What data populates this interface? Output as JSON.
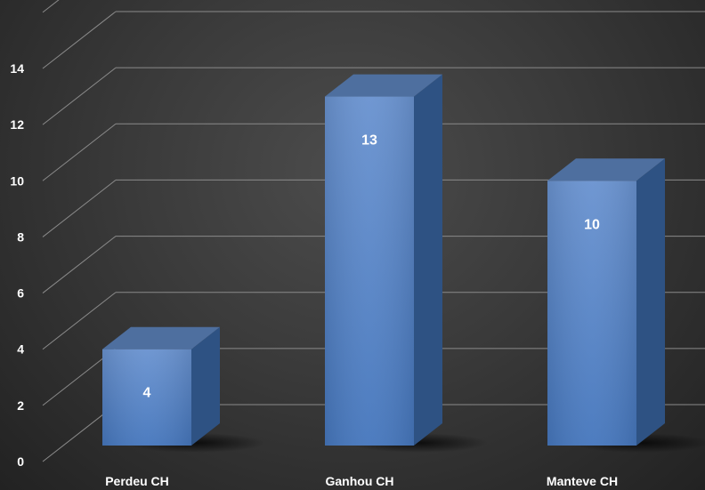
{
  "chart_data": {
    "type": "bar",
    "style": "3d-column",
    "categories": [
      "Perdeu CH",
      "Ganhou CH",
      "Manteve CH"
    ],
    "values": [
      4,
      13,
      10
    ],
    "data_labels": [
      "4",
      "13",
      "10"
    ],
    "ylim": [
      0,
      14
    ],
    "yticks": [
      0,
      2,
      4,
      6,
      8,
      10,
      12,
      14
    ],
    "title": "",
    "xlabel": "",
    "ylabel": "",
    "grid": true,
    "legend": "none"
  },
  "colors": {
    "bar_front_top": "#6a93d0",
    "bar_front_bottom": "#4677bd",
    "bar_side": "#2e5283",
    "bar_top": "#4e6f9f",
    "gridline": "#8a8a8a",
    "text": "#ffffff"
  }
}
